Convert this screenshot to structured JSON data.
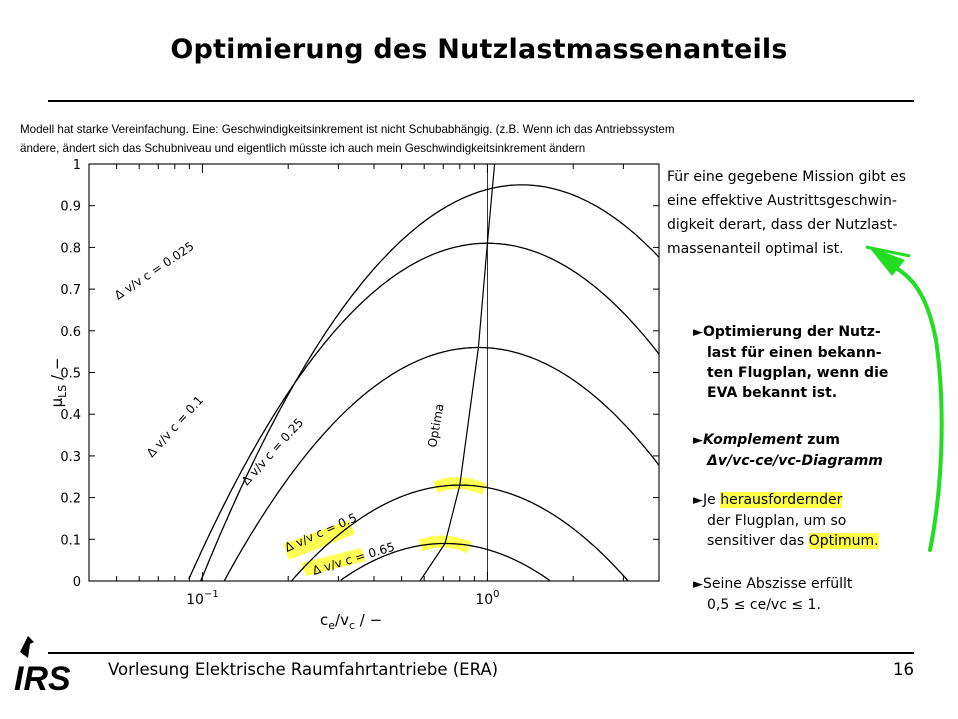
{
  "slide": {
    "title": "Optimierung des Nutzlastmassenanteils",
    "note_lines": [
      "Modell hat starke Vereinfachung. Eine: Geschwindigkeitsinkrement ist nicht Schubabhängig. (z.B. Wenn ich das Antriebssystem",
      "ändere, ändert sich das Schubniveau und eigentlich müsste ich auch mein Geschwindigkeitsinkrement ändern"
    ],
    "description_lines": [
      "Für eine gegebene Mission gibt es",
      "eine effektive Austrittsgeschwin-",
      "digkeit derart, dass der Nutzlast-",
      "massenanteil optimal ist."
    ],
    "bullet1": {
      "lines": [
        "Optimierung der Nutz-",
        "last für einen bekann-",
        "ten Flugplan, wenn die",
        "EVA bekannt ist."
      ]
    },
    "bullet2": {
      "italic_word": "Komplement",
      "rest_line1": " zum",
      "line2": "Δv/vc-ce/vc-Diagramm"
    },
    "bullet3": {
      "prefix": "Je ",
      "highlight1": "herausfordernder",
      "line2": "der Flugplan, um so",
      "line3_prefix": "sensitiver das ",
      "highlight2": "Optimum."
    },
    "bullet4": {
      "line1": "Seine Abszisse erfüllt",
      "line2": "0,5 ≤ ce/vc ≤ 1."
    },
    "footer": "Vorlesung Elektrische Raumfahrtantriebe (ERA)",
    "page_number": "16",
    "logo_text": "IRS",
    "colors": {
      "highlight": "#ffff44",
      "pen": "#22dd22",
      "curve": "#000000"
    }
  },
  "chart_data": {
    "type": "line",
    "x_scale": "log",
    "xlim": [
      0.04,
      4
    ],
    "ylim": [
      0,
      1
    ],
    "xlabel": "ce/vc / −",
    "ylabel": "μLS / −",
    "x_ticks": [
      "10^−1",
      "10^0"
    ],
    "y_ticks": [
      "0",
      "0.1",
      "0.2",
      "0.3",
      "0.4",
      "0.5",
      "0.6",
      "0.7",
      "0.8",
      "0.9",
      "1"
    ],
    "grid": false,
    "reference_line_x": 1.0,
    "series": [
      {
        "name": "Δ v/v c = 0.025",
        "dv": 0.025,
        "peak_x": 1.32,
        "peak_y": 0.95
      },
      {
        "name": "Δ v/v c = 0.1",
        "dv": 0.1,
        "peak_x": 1.0,
        "peak_y": 0.81
      },
      {
        "name": "Δ v/v c = 0.25",
        "dv": 0.25,
        "peak_x": 0.93,
        "peak_y": 0.56
      },
      {
        "name": "Δ v/v c = 0.5",
        "dv": 0.5,
        "peak_x": 0.8,
        "peak_y": 0.23
      },
      {
        "name": "Δ v/v c = 0.65",
        "dv": 0.65,
        "peak_x": 0.71,
        "peak_y": 0.09
      }
    ],
    "optima_curve": {
      "name": "Optima",
      "points": [
        [
          0.58,
          0.0
        ],
        [
          0.71,
          0.09
        ],
        [
          0.8,
          0.23
        ],
        [
          0.93,
          0.56
        ],
        [
          1.0,
          0.81
        ],
        [
          1.06,
          1.0
        ]
      ]
    }
  }
}
